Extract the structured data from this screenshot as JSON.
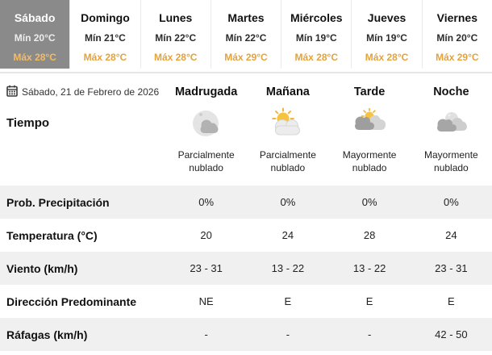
{
  "colors": {
    "accent_orange": "#e5a23b",
    "selected_tab_bg": "#8a8a8a",
    "stripe_bg": "#f0f0f0"
  },
  "day_tabs": [
    {
      "day": "Sábado",
      "min": "Mín 20°C",
      "max": "Máx 28°C",
      "selected": true
    },
    {
      "day": "Domingo",
      "min": "Mín 21°C",
      "max": "Máx 28°C",
      "selected": false
    },
    {
      "day": "Lunes",
      "min": "Mín 22°C",
      "max": "Máx 28°C",
      "selected": false
    },
    {
      "day": "Martes",
      "min": "Mín 22°C",
      "max": "Máx 29°C",
      "selected": false
    },
    {
      "day": "Miércoles",
      "min": "Mín 19°C",
      "max": "Máx 28°C",
      "selected": false
    },
    {
      "day": "Jueves",
      "min": "Mín 19°C",
      "max": "Máx 28°C",
      "selected": false
    },
    {
      "day": "Viernes",
      "min": "Mín 20°C",
      "max": "Máx 29°C",
      "selected": false
    }
  ],
  "table": {
    "date": "Sábado, 21 de Febrero de 2026",
    "calendar_icon": "calendar-icon",
    "columns": [
      "Madrugada",
      "Mañana",
      "Tarde",
      "Noche"
    ],
    "weather_row": {
      "label": "Tiempo",
      "cells": [
        {
          "icon": "night-partly-cloudy-icon",
          "text": "Parcialmente nublado"
        },
        {
          "icon": "sun-partly-cloudy-icon",
          "text": "Parcialmente nublado"
        },
        {
          "icon": "mostly-cloudy-day-icon",
          "text": "Mayormente nublado"
        },
        {
          "icon": "mostly-cloudy-night-icon",
          "text": "Mayormente nublado"
        }
      ]
    },
    "rows": [
      {
        "label": "Prob. Precipitación",
        "values": [
          "0%",
          "0%",
          "0%",
          "0%"
        ],
        "striped": true
      },
      {
        "label": "Temperatura (°C)",
        "values": [
          "20",
          "24",
          "28",
          "24"
        ],
        "striped": false
      },
      {
        "label": "Viento (km/h)",
        "values": [
          "23 - 31",
          "13 - 22",
          "13 - 22",
          "23 - 31"
        ],
        "striped": true
      },
      {
        "label": "Dirección Predominante",
        "values": [
          "NE",
          "E",
          "E",
          "E"
        ],
        "striped": false
      },
      {
        "label": "Ráfagas (km/h)",
        "values": [
          "-",
          "-",
          "-",
          "42 - 50"
        ],
        "striped": true
      }
    ]
  }
}
